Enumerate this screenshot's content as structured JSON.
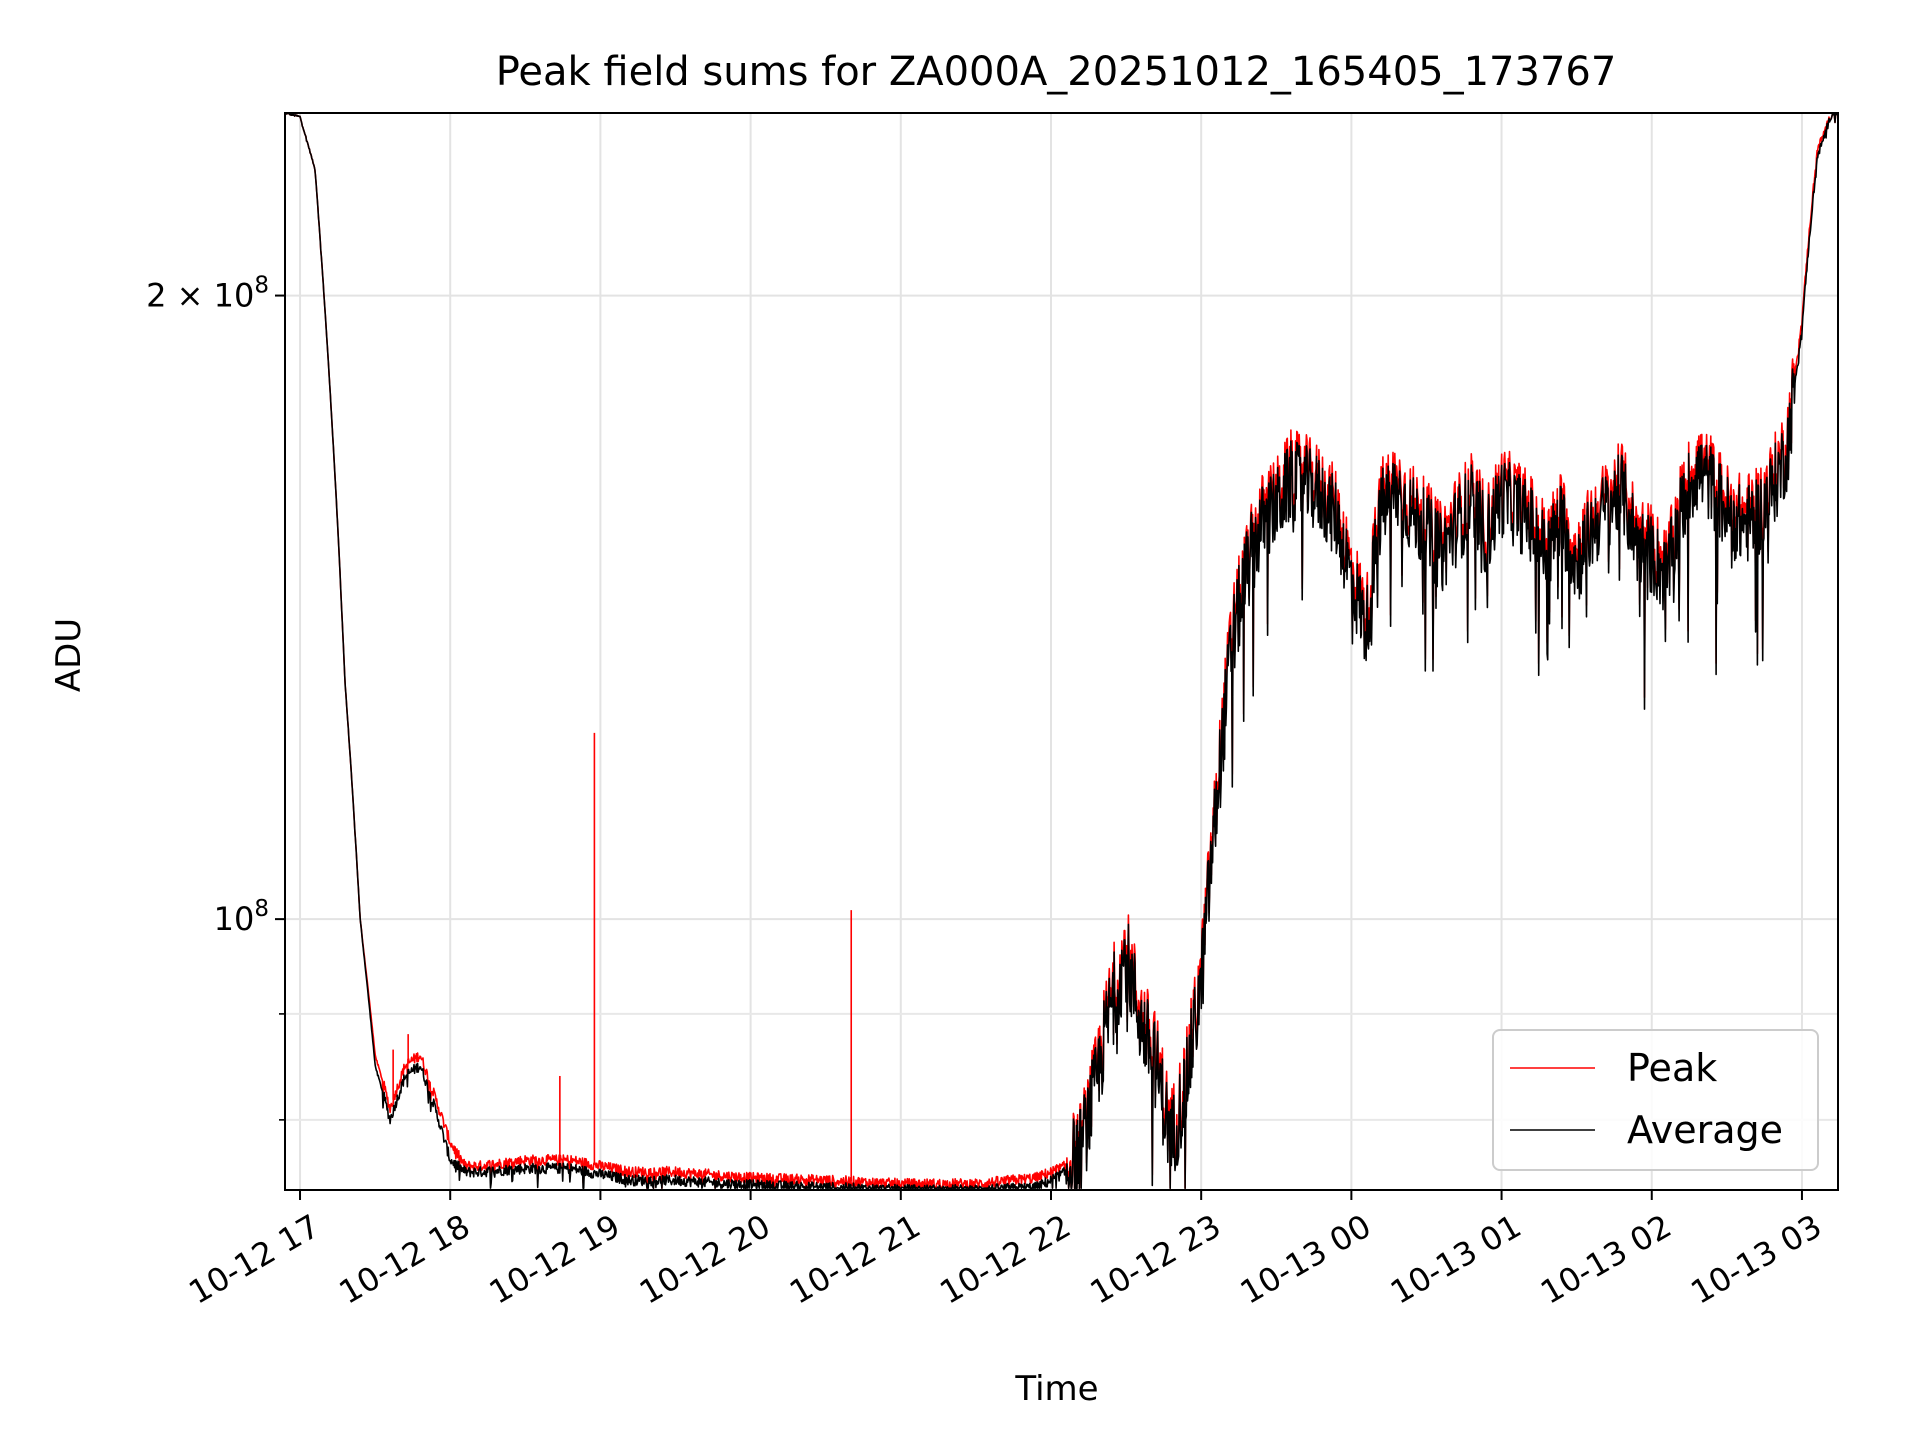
{
  "chart_data": {
    "type": "line",
    "title": "Peak field sums for ZA000A_20251012_165405_173767",
    "xlabel": "Time",
    "ylabel": "ADU",
    "yscale": "log",
    "xlim": [
      -0.1,
      10.24
    ],
    "ylim": [
      74000000,
      245000000
    ],
    "grid": true,
    "legend_position": "lower-right",
    "x_unit": "hours since 10-12 17:00",
    "x_ticks": [
      {
        "value": 0,
        "label": "10-12 17"
      },
      {
        "value": 1,
        "label": "10-12 18"
      },
      {
        "value": 2,
        "label": "10-12 19"
      },
      {
        "value": 3,
        "label": "10-12 20"
      },
      {
        "value": 4,
        "label": "10-12 21"
      },
      {
        "value": 5,
        "label": "10-12 22"
      },
      {
        "value": 6,
        "label": "10-12 23"
      },
      {
        "value": 7,
        "label": "10-13 00"
      },
      {
        "value": 8,
        "label": "10-13 01"
      },
      {
        "value": 9,
        "label": "10-13 02"
      },
      {
        "value": 10,
        "label": "10-13 03"
      }
    ],
    "y_ticks": [
      {
        "value": 200000000,
        "label": "2 × 10",
        "exp": "8"
      },
      {
        "value": 100000000,
        "label": "10",
        "exp": "8"
      }
    ],
    "y_minor_ticks": [
      80000000,
      90000000
    ],
    "series": [
      {
        "name": "Peak",
        "color": "#ff0000",
        "x": [
          -0.1,
          0.0,
          0.1,
          0.2,
          0.3,
          0.4,
          0.5,
          0.6,
          0.7,
          0.8,
          0.9,
          1.0,
          1.1,
          1.2,
          1.5,
          1.8,
          2.0,
          2.2,
          2.5,
          3.0,
          3.5,
          4.0,
          4.5,
          4.9,
          5.0,
          5.1,
          5.2,
          5.3,
          5.4,
          5.5,
          5.6,
          5.7,
          5.8,
          5.9,
          6.0,
          6.1,
          6.2,
          6.3,
          6.4,
          6.5,
          6.6,
          6.7,
          6.8,
          6.9,
          7.0,
          7.1,
          7.2,
          7.3,
          7.4,
          7.5,
          7.6,
          7.7,
          7.8,
          7.9,
          8.0,
          8.1,
          8.2,
          8.3,
          8.4,
          8.5,
          8.6,
          8.7,
          8.8,
          8.9,
          9.0,
          9.1,
          9.2,
          9.3,
          9.4,
          9.5,
          9.6,
          9.7,
          9.8,
          9.9,
          10.0,
          10.1,
          10.2
        ],
        "values": [
          245000000,
          244000000,
          230000000,
          180000000,
          130000000,
          100000000,
          86000000,
          81000000,
          85000000,
          86000000,
          82000000,
          78000000,
          76000000,
          76000000,
          76500000,
          76500000,
          76000000,
          75500000,
          75500000,
          75000000,
          74800000,
          74500000,
          74500000,
          75000000,
          75500000,
          76000000,
          78000000,
          84000000,
          92000000,
          97000000,
          90000000,
          86000000,
          79000000,
          84000000,
          94000000,
          114000000,
          137000000,
          148000000,
          157000000,
          160000000,
          165000000,
          164000000,
          162000000,
          158000000,
          148000000,
          140000000,
          160000000,
          163000000,
          159000000,
          156000000,
          152000000,
          157000000,
          161000000,
          155000000,
          162000000,
          160000000,
          157000000,
          152000000,
          158000000,
          150000000,
          156000000,
          160000000,
          163000000,
          154000000,
          152000000,
          148000000,
          160000000,
          167000000,
          164000000,
          159000000,
          157000000,
          158000000,
          163000000,
          170000000,
          195000000,
          235000000,
          245000000
        ]
      },
      {
        "name": "Average",
        "color": "#000000",
        "x": [
          -0.1,
          0.0,
          0.1,
          0.2,
          0.3,
          0.4,
          0.5,
          0.6,
          0.7,
          0.8,
          0.9,
          1.0,
          1.1,
          1.2,
          1.5,
          1.8,
          2.0,
          2.2,
          2.5,
          3.0,
          3.5,
          4.0,
          4.5,
          4.9,
          5.0,
          5.1,
          5.2,
          5.3,
          5.4,
          5.5,
          5.6,
          5.7,
          5.8,
          5.9,
          6.0,
          6.1,
          6.2,
          6.3,
          6.4,
          6.5,
          6.6,
          6.7,
          6.8,
          6.9,
          7.0,
          7.1,
          7.2,
          7.3,
          7.4,
          7.5,
          7.6,
          7.7,
          7.8,
          7.9,
          8.0,
          8.1,
          8.2,
          8.3,
          8.4,
          8.5,
          8.6,
          8.7,
          8.8,
          8.9,
          9.0,
          9.1,
          9.2,
          9.3,
          9.4,
          9.5,
          9.6,
          9.7,
          9.8,
          9.9,
          10.0,
          10.1,
          10.2
        ],
        "values": [
          245000000,
          244000000,
          230000000,
          180000000,
          130000000,
          100000000,
          85000000,
          80000000,
          84000000,
          85000000,
          81000000,
          76500000,
          75500000,
          75500000,
          75800000,
          75800000,
          75300000,
          74800000,
          74800000,
          74400000,
          74200000,
          74000000,
          74000000,
          74200000,
          74800000,
          75500000,
          77500000,
          83000000,
          91000000,
          96000000,
          89000000,
          85000000,
          78000000,
          83000000,
          93000000,
          113000000,
          135000000,
          147000000,
          155000000,
          158000000,
          163000000,
          162000000,
          160000000,
          156000000,
          146000000,
          138000000,
          158000000,
          161000000,
          157000000,
          154000000,
          150000000,
          155000000,
          159000000,
          153000000,
          160000000,
          158000000,
          155000000,
          150000000,
          156000000,
          148000000,
          154000000,
          158000000,
          161000000,
          152000000,
          150000000,
          146000000,
          158000000,
          165000000,
          162000000,
          157000000,
          155000000,
          156000000,
          161000000,
          168000000,
          193000000,
          233000000,
          245000000
        ]
      }
    ],
    "annotations": [
      {
        "series": "Peak",
        "type": "spike",
        "x": 0.62,
        "value": 86500000
      },
      {
        "series": "Peak",
        "type": "spike",
        "x": 0.72,
        "value": 88000000
      },
      {
        "series": "Peak",
        "type": "spike",
        "x": 1.73,
        "value": 84000000
      },
      {
        "series": "Peak",
        "type": "spike",
        "x": 1.96,
        "value": 123000000
      },
      {
        "series": "Peak",
        "type": "spike",
        "x": 3.67,
        "value": 101000000
      }
    ]
  }
}
